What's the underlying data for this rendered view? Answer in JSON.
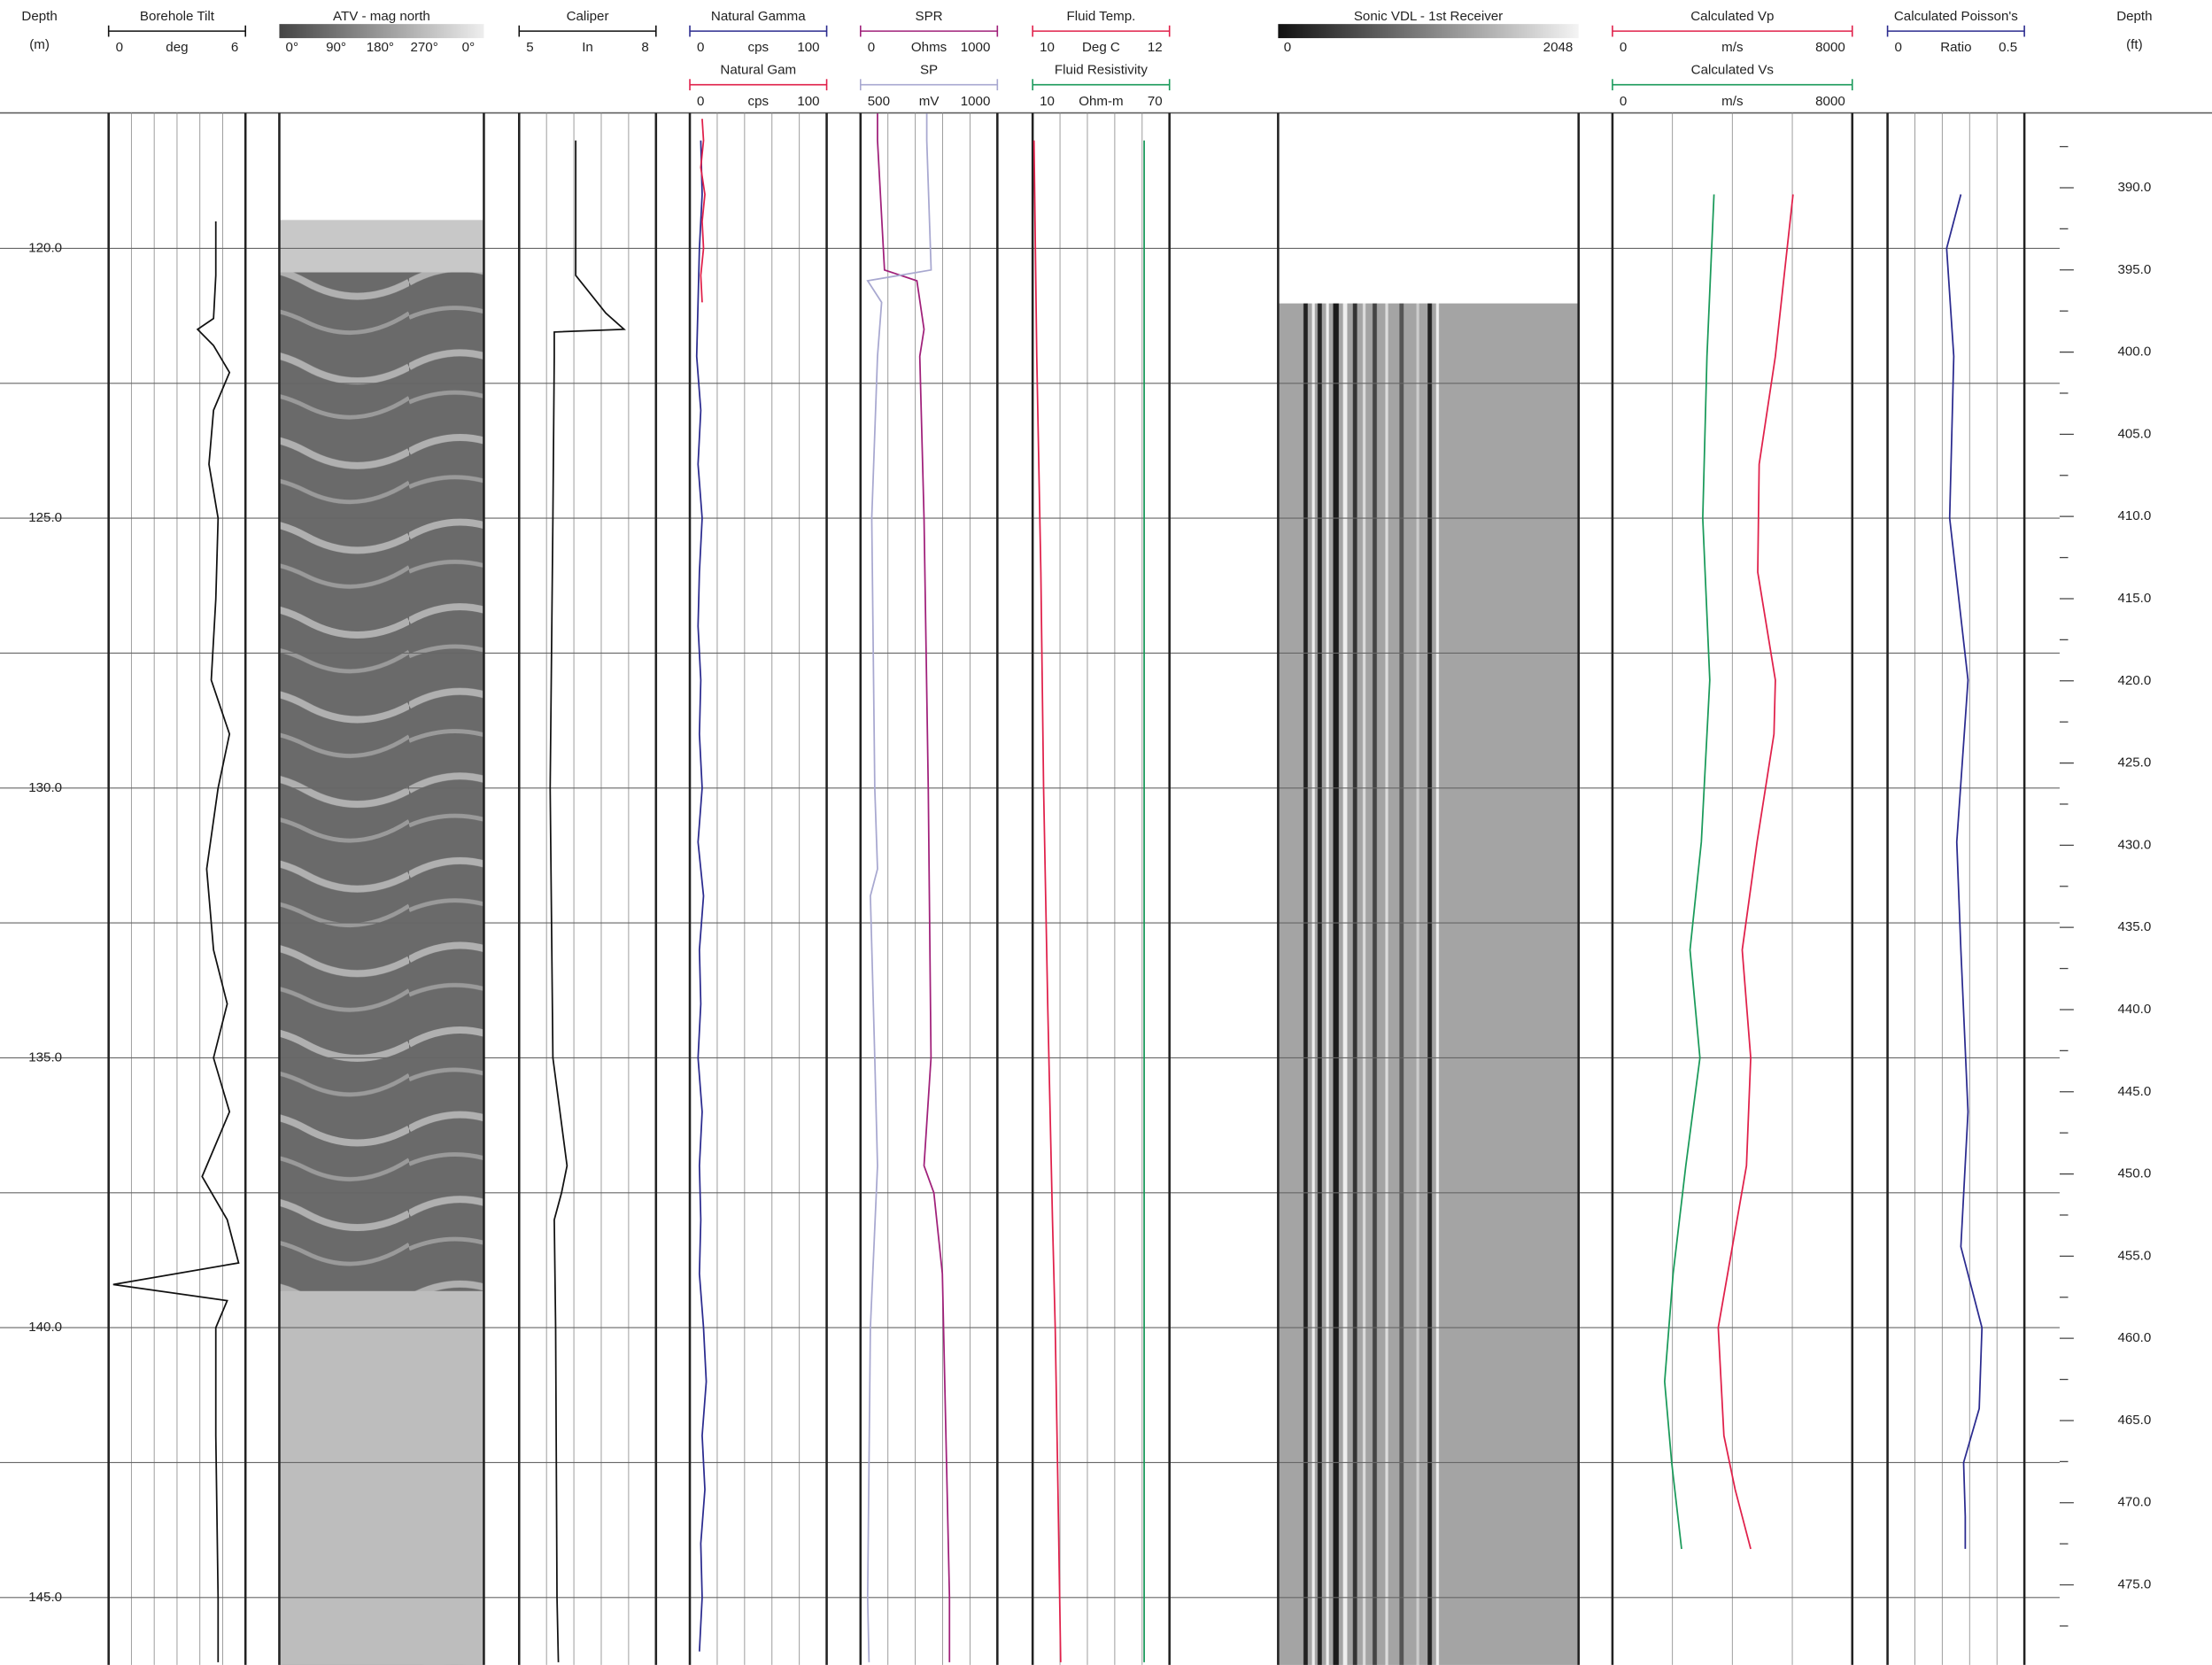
{
  "depth_m": {
    "title": "Depth",
    "unit": "(m)",
    "ylim": [
      117.49,
      146.25
    ],
    "ticks": [
      {
        "value": 120,
        "label": "120.0"
      },
      {
        "value": 125,
        "label": "125.0"
      },
      {
        "value": 130,
        "label": "130.0"
      },
      {
        "value": 135,
        "label": "135.0"
      },
      {
        "value": 140,
        "label": "140.0"
      },
      {
        "value": 145,
        "label": "145.0"
      }
    ],
    "minor_ticks": [
      122.5,
      127.5,
      132.5,
      137.5,
      142.5
    ]
  },
  "depth_ft": {
    "title": "Depth",
    "unit": "(ft)",
    "ylim": [
      385.45,
      479.87
    ],
    "ticks": [
      {
        "value": 390,
        "label": "390.0"
      },
      {
        "value": 395,
        "label": "395.0"
      },
      {
        "value": 400,
        "label": "400.0"
      },
      {
        "value": 405,
        "label": "405.0"
      },
      {
        "value": 410,
        "label": "410.0"
      },
      {
        "value": 415,
        "label": "415.0"
      },
      {
        "value": 420,
        "label": "420.0"
      },
      {
        "value": 425,
        "label": "425.0"
      },
      {
        "value": 430,
        "label": "430.0"
      },
      {
        "value": 435,
        "label": "435.0"
      },
      {
        "value": 440,
        "label": "440.0"
      },
      {
        "value": 445,
        "label": "445.0"
      },
      {
        "value": 450,
        "label": "450.0"
      },
      {
        "value": 455,
        "label": "455.0"
      },
      {
        "value": 460,
        "label": "460.0"
      },
      {
        "value": 465,
        "label": "465.0"
      },
      {
        "value": 470,
        "label": "470.0"
      },
      {
        "value": 475,
        "label": "475.0"
      }
    ],
    "minor_ticks": [
      387.5,
      392.5,
      397.5,
      402.5,
      407.5,
      412.5,
      417.5,
      422.5,
      427.5,
      432.5,
      437.5,
      442.5,
      447.5,
      452.5,
      457.5,
      462.5,
      467.5,
      472.5,
      477.5
    ]
  },
  "tracks": [
    {
      "curves": [
        {
          "name": "Borehole Tilt",
          "min": 0,
          "unit": "deg",
          "max": 6,
          "color": "#111111",
          "depths": [
            119.5,
            120.5,
            121.3,
            121.5,
            121.8,
            122.3,
            123,
            124,
            125,
            126.5,
            128,
            129,
            130,
            131.5,
            133,
            134,
            135,
            136,
            137.2,
            138,
            138.8,
            139.2,
            139.5,
            140,
            142,
            145,
            146.2
          ],
          "values": [
            4.7,
            4.7,
            4.6,
            3.9,
            4.6,
            5.3,
            4.6,
            4.4,
            4.8,
            4.7,
            4.5,
            5.3,
            4.8,
            4.3,
            4.6,
            5.2,
            4.6,
            5.3,
            4.1,
            5.2,
            5.7,
            0.2,
            5.2,
            4.7,
            4.7,
            4.8,
            4.8
          ]
        }
      ]
    },
    {
      "image": {
        "name": "ATV - mag north",
        "labels": [
          "0°",
          "90°",
          "180°",
          "270°",
          "0°"
        ]
      }
    },
    {
      "curves": [
        {
          "name": "Caliper",
          "min": 5,
          "unit": "In",
          "max": 8,
          "color": "#111111",
          "depths": [
            118,
            120.5,
            121.2,
            121.5,
            121.55,
            122,
            125,
            130,
            135,
            137,
            137.5,
            138,
            140,
            145,
            146.2
          ],
          "values": [
            6.24,
            6.24,
            6.9,
            7.3,
            5.77,
            5.77,
            5.74,
            5.68,
            5.74,
            6.05,
            5.93,
            5.77,
            5.8,
            5.83,
            5.86
          ]
        }
      ]
    },
    {
      "curves": [
        {
          "name": "Natural Gamma",
          "min": 0,
          "unit": "cps",
          "max": 100,
          "color": "#2b2b8f",
          "depths": [
            118,
            119,
            120,
            121,
            122,
            123,
            124,
            125,
            126,
            127,
            128,
            129,
            130,
            131,
            132,
            133,
            134,
            135,
            136,
            137,
            138,
            139,
            140,
            141,
            142,
            143,
            144,
            145,
            146
          ],
          "values": [
            8,
            9,
            7,
            6,
            5,
            8,
            6,
            9,
            7,
            6,
            8,
            7,
            9,
            6,
            10,
            7,
            8,
            6,
            9,
            7,
            8,
            7,
            10,
            12,
            9,
            11,
            8,
            9,
            7
          ]
        },
        {
          "name": "Natural Gam",
          "min": 0,
          "unit": "cps",
          "max": 100,
          "color": "#e0204a",
          "depths": [
            117.6,
            118,
            118.5,
            119,
            119.5,
            120,
            120.5,
            121
          ],
          "values": [
            9,
            10,
            8,
            11,
            9,
            10,
            8,
            9
          ]
        }
      ]
    },
    {
      "curves": [
        {
          "name": "SPR",
          "min": 0,
          "unit": "Ohms",
          "max": 1000,
          "color": "#a0207a",
          "depths": [
            117.5,
            118,
            120.4,
            120.6,
            121.5,
            122,
            125,
            130,
            135,
            137,
            137.5,
            139,
            145,
            146.2
          ],
          "values": [
            124,
            124,
            175,
            412,
            464,
            433,
            464,
            495,
            515,
            464,
            536,
            598,
            650,
            650
          ]
        },
        {
          "name": "SP",
          "min": 500,
          "unit": "mV",
          "max": 1000,
          "color": "#a8a8d0",
          "depths": [
            117.5,
            118,
            120.4,
            120.6,
            121,
            122,
            125,
            130,
            131.5,
            132,
            135,
            137,
            140,
            145,
            146.2
          ],
          "values": [
            742,
            742,
            758,
            526,
            577,
            562,
            541,
            552,
            562,
            536,
            552,
            562,
            536,
            526,
            531
          ]
        }
      ]
    },
    {
      "curves": [
        {
          "name": "Fluid Temp.",
          "min": 10,
          "unit": "Deg C",
          "max": 12,
          "color": "#e0204a",
          "depths": [
            118,
            122,
            126,
            130,
            134,
            138,
            140,
            143,
            146.2
          ],
          "values": [
            10.02,
            10.06,
            10.12,
            10.16,
            10.22,
            10.29,
            10.33,
            10.37,
            10.41
          ]
        },
        {
          "name": "Fluid Resistivity",
          "min": 10,
          "unit": "Ohm-m",
          "max": 70,
          "color": "#1a9a5a",
          "depths": [
            118,
            130,
            146.2
          ],
          "values": [
            58.9,
            58.9,
            58.9
          ]
        }
      ]
    },
    {
      "image": {
        "name": "Sonic VDL - 1st Receiver",
        "min": 0,
        "max": 2048
      }
    },
    {
      "curves": [
        {
          "name": "Calculated Vp",
          "min": 0,
          "unit": "m/s",
          "max": 8000,
          "color": "#e0204a",
          "depths": [
            119,
            122,
            124,
            126,
            128,
            129,
            131,
            133,
            135,
            137,
            138.5,
            140,
            142,
            143,
            144.1
          ],
          "values": [
            6024,
            5435,
            4894,
            4847,
            5435,
            5388,
            4824,
            4329,
            4612,
            4471,
            4000,
            3529,
            3718,
            4094,
            4612
          ]
        },
        {
          "name": "Calculated Vs",
          "min": 0,
          "unit": "m/s",
          "max": 8000,
          "color": "#1a9a5a",
          "depths": [
            119,
            122,
            125,
            128,
            131,
            133,
            135,
            137,
            139,
            141,
            142.5,
            144.1
          ],
          "values": [
            3388,
            3153,
            3012,
            3247,
            2965,
            2588,
            2918,
            2447,
            2024,
            1741,
            1976,
            2306
          ]
        }
      ]
    },
    {
      "curves": [
        {
          "name": "Calculated Poisson's",
          "min": 0,
          "unit": "Ratio",
          "max": 0.5,
          "color": "#2b2b8f",
          "depths": [
            119,
            120,
            122,
            125,
            128,
            131,
            133,
            136,
            138.5,
            140,
            141.5,
            142.5,
            143.5,
            144.1
          ],
          "values": [
            0.268,
            0.216,
            0.242,
            0.227,
            0.294,
            0.253,
            0.268,
            0.294,
            0.268,
            0.345,
            0.335,
            0.278,
            0.284,
            0.284
          ]
        }
      ]
    }
  ]
}
